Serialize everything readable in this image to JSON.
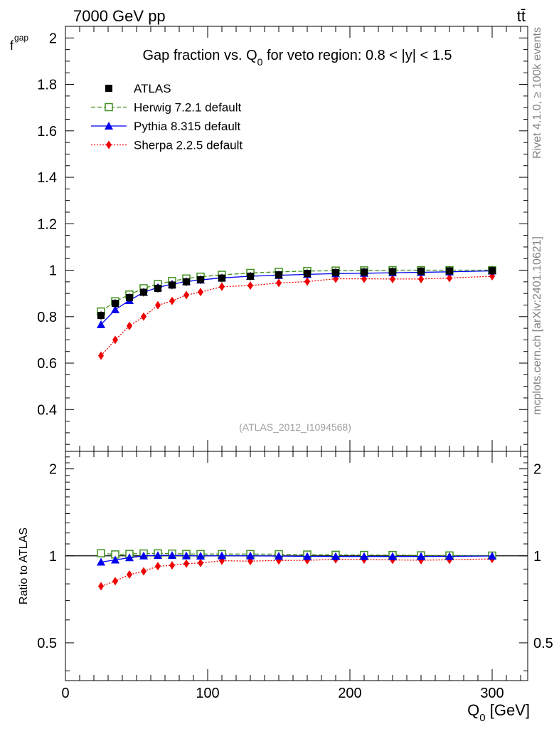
{
  "header": {
    "energy_label": "7000 GeV pp",
    "process_label": "tt̄",
    "side_label_top": "Rivet 4.1.0, ≥ 100k events",
    "side_label_bottom": "mcplots.cern.ch [arXiv:2401.10621]",
    "analysis_id": "(ATLAS_2012_I1094568)"
  },
  "colors": {
    "atlas": "#000000",
    "herwig": "#3f8f1f",
    "pythia": "#0000ee",
    "sherpa": "#ee0000",
    "side_text": "#808080"
  },
  "chart_data": [
    {
      "type": "line",
      "panel": "main",
      "title_main": "Gap fraction vs. Q",
      "title_sub": "0",
      "title_rest": " for veto region: 0.8 < |y| < 1.5",
      "ylabel_main": "f",
      "ylabel_sub": "gap",
      "xlim": [
        0,
        325
      ],
      "ylim": [
        0.22,
        2.05
      ],
      "yticks": [
        0.4,
        0.6,
        0.8,
        1,
        1.2,
        1.4,
        1.6,
        1.8,
        2
      ],
      "ytick_labels": [
        "0.4",
        "0.6",
        "0.8",
        "1",
        "1.2",
        "1.4",
        "1.6",
        "1.8",
        "2"
      ],
      "x": [
        25,
        35,
        45,
        55,
        65,
        75,
        85,
        95,
        110,
        130,
        150,
        170,
        190,
        210,
        230,
        250,
        270,
        300
      ],
      "legend_position": "top-left",
      "series": [
        {
          "key": "atlas",
          "name": "ATLAS",
          "marker": "square-filled",
          "line": "none",
          "values": [
            0.805,
            0.857,
            0.882,
            0.905,
            0.922,
            0.936,
            0.95,
            0.959,
            0.966,
            0.974,
            0.98,
            0.986,
            0.99,
            0.992,
            0.994,
            0.996,
            0.997,
            0.998
          ]
        },
        {
          "key": "herwig",
          "name": "Herwig 7.2.1 default",
          "marker": "square-open",
          "line": "dashed",
          "values": [
            0.822,
            0.866,
            0.895,
            0.922,
            0.94,
            0.953,
            0.964,
            0.972,
            0.98,
            0.988,
            0.993,
            0.996,
            0.998,
            0.999,
            1.0,
            1.0,
            1.0,
            1.0
          ]
        },
        {
          "key": "pythia",
          "name": "Pythia 8.315 default",
          "marker": "triangle",
          "line": "solid",
          "values": [
            0.766,
            0.83,
            0.87,
            0.905,
            0.926,
            0.94,
            0.951,
            0.958,
            0.967,
            0.974,
            0.978,
            0.982,
            0.985,
            0.987,
            0.989,
            0.991,
            0.993,
            0.997
          ]
        },
        {
          "key": "sherpa",
          "name": "Sherpa 2.2.5 default",
          "marker": "diamond",
          "line": "dotted",
          "values": [
            0.632,
            0.7,
            0.76,
            0.8,
            0.849,
            0.868,
            0.893,
            0.906,
            0.929,
            0.934,
            0.945,
            0.951,
            0.963,
            0.963,
            0.962,
            0.962,
            0.966,
            0.974
          ]
        }
      ]
    },
    {
      "type": "line",
      "panel": "ratio",
      "ylabel": "Ratio to ATLAS",
      "xlabel_main": "Q",
      "xlabel_sub": "0",
      "xlabel_rest": " [GeV]",
      "xlim": [
        0,
        325
      ],
      "ylim": [
        0.37,
        2.3
      ],
      "yscale": "log",
      "yticks": [
        0.5,
        1,
        2
      ],
      "ytick_labels": [
        "0.5",
        "1",
        "2"
      ],
      "xticks": [
        0,
        100,
        200,
        300
      ],
      "xtick_labels": [
        "0",
        "100",
        "200",
        "300"
      ],
      "x": [
        25,
        35,
        45,
        55,
        65,
        75,
        85,
        95,
        110,
        130,
        150,
        170,
        190,
        210,
        230,
        250,
        270,
        300
      ],
      "reference": 1,
      "series": [
        {
          "key": "herwig",
          "name": "Herwig 7.2.1 default",
          "marker": "square-open",
          "line": "dashed",
          "values": [
            1.021,
            1.011,
            1.015,
            1.019,
            1.02,
            1.018,
            1.015,
            1.014,
            1.014,
            1.014,
            1.013,
            1.01,
            1.008,
            1.007,
            1.006,
            1.004,
            1.003,
            1.002
          ]
        },
        {
          "key": "pythia",
          "name": "Pythia 8.315 default",
          "marker": "triangle",
          "line": "solid",
          "values": [
            0.952,
            0.968,
            0.986,
            1.0,
            1.004,
            1.004,
            1.001,
            0.999,
            1.001,
            1.0,
            0.998,
            0.996,
            0.995,
            0.995,
            0.995,
            0.995,
            0.996,
            0.999
          ]
        },
        {
          "key": "sherpa",
          "name": "Sherpa 2.2.5 default",
          "marker": "diamond",
          "line": "dotted",
          "values": [
            0.785,
            0.817,
            0.862,
            0.884,
            0.921,
            0.927,
            0.94,
            0.945,
            0.962,
            0.959,
            0.964,
            0.965,
            0.973,
            0.971,
            0.968,
            0.966,
            0.969,
            0.976
          ]
        }
      ]
    }
  ]
}
